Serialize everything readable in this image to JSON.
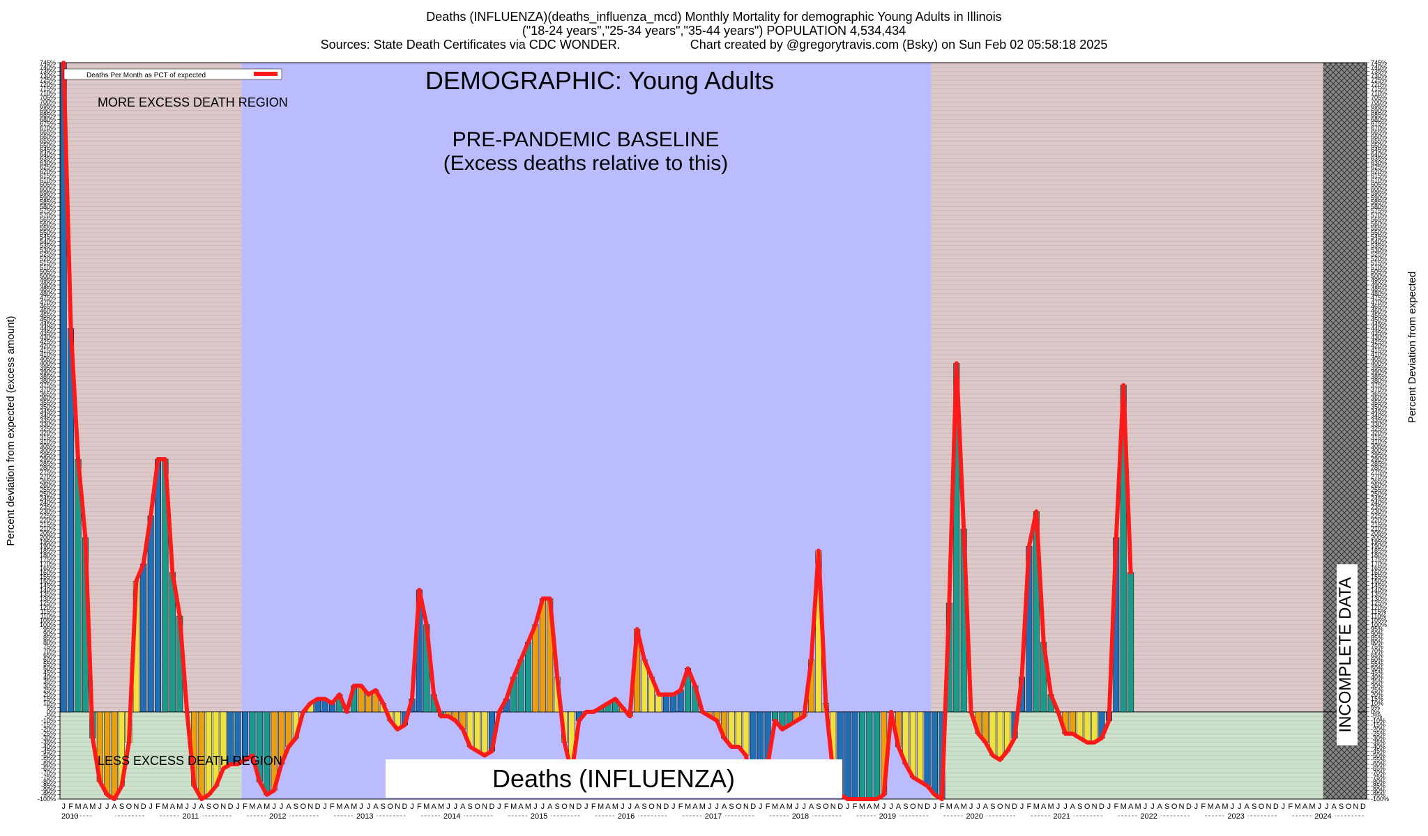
{
  "header": {
    "title_line1": "Deaths (INFLUENZA)(deaths_influenza_mcd) Monthly Mortality for demographic Young Adults in Illinois",
    "title_line2": "(\"18-24 years\",\"25-34 years\",\"35-44 years\") POPULATION 4,534,434",
    "sources": "Sources: State Death Certificates via CDC WONDER.",
    "credit": "Chart created by @gregorytravis.com (Bsky) on Sun Feb 02 05:58:18 2025"
  },
  "annotations": {
    "demographic": "DEMOGRAPHIC: Young Adults",
    "baseline_line1": "PRE-PANDEMIC BASELINE",
    "baseline_line2": "(Excess deaths relative to this)",
    "more_excess": "MORE EXCESS DEATH REGION",
    "less_excess": "LESS EXCESS DEATH REGION",
    "incomplete": "INCOMPLETE DATA",
    "bottom_label": "Deaths (INFLUENZA)"
  },
  "colors": {
    "background": "#ffffff",
    "baseline_region": "#bbbbff",
    "excess_region": "#dcc8c8",
    "less_region": "#cce0cc",
    "incomplete_region": "#888888",
    "line": "#ff1a1a",
    "bar_palette": [
      "#1f6fb4",
      "#1a9a8a",
      "#e8a010",
      "#f0e040"
    ]
  },
  "chart_data": {
    "type": "bar",
    "title": "Deaths (INFLUENZA)(deaths_influenza_mcd) Monthly Mortality for demographic Young Adults in Illinois",
    "ylabel_left": "Percent deviation from expected (excess amount)",
    "ylabel_right": "Percent Deviation from expected",
    "ylim": [
      -100,
      745
    ],
    "ytick_step": 5,
    "grid": true,
    "legend": {
      "label": "Deaths Per Month as PCT of expected",
      "placement": "top-left"
    },
    "x_start": "2010-01",
    "month_letters": [
      "J",
      "F",
      "M",
      "A",
      "M",
      "J",
      "J",
      "A",
      "S",
      "O",
      "N",
      "D"
    ],
    "years": [
      "2010",
      "2011",
      "2012",
      "2013",
      "2014",
      "2015",
      "2016",
      "2017",
      "2018",
      "2019",
      "2020",
      "2021",
      "2022",
      "2023",
      "2024"
    ],
    "regions": [
      {
        "name": "more excess / less excess",
        "from": "2010-01",
        "to": "2012-01"
      },
      {
        "name": "pre-pandemic baseline",
        "from": "2012-02",
        "to": "2020-01"
      },
      {
        "name": "more excess / less excess",
        "from": "2020-01",
        "to": "2024-06"
      },
      {
        "name": "incomplete data",
        "from": "2024-07",
        "to": "2024-12"
      }
    ],
    "series": [
      {
        "name": "Deaths Per Month as PCT of expected",
        "values": [
          745,
          440,
          290,
          200,
          -30,
          -80,
          -95,
          -100,
          -85,
          -35,
          150,
          170,
          225,
          290,
          290,
          160,
          110,
          0,
          -85,
          -100,
          -95,
          -85,
          -65,
          -60,
          -60,
          -55,
          -50,
          -80,
          -95,
          -90,
          -60,
          -40,
          -30,
          0,
          10,
          15,
          15,
          10,
          20,
          0,
          30,
          30,
          20,
          25,
          10,
          -10,
          -20,
          -15,
          15,
          140,
          100,
          20,
          -5,
          -5,
          -10,
          -20,
          -40,
          -45,
          -50,
          -45,
          0,
          15,
          40,
          60,
          80,
          100,
          130,
          130,
          40,
          -35,
          -70,
          -10,
          0,
          0,
          5,
          10,
          15,
          5,
          -5,
          95,
          60,
          40,
          20,
          20,
          20,
          25,
          50,
          30,
          0,
          -5,
          -10,
          -30,
          -40,
          -40,
          -50,
          -95,
          -90,
          -60,
          -10,
          -20,
          -15,
          -10,
          -5,
          60,
          185,
          10,
          -70,
          -95,
          -100,
          -100,
          -100,
          -100,
          -100,
          -95,
          0,
          -40,
          -60,
          -75,
          -80,
          -85,
          -95,
          -100,
          125,
          400,
          210,
          0,
          -25,
          -35,
          -50,
          -55,
          -45,
          -30,
          40,
          190,
          230,
          80,
          20,
          0,
          -25,
          -25,
          -30,
          -35,
          -35,
          -30,
          -10,
          200,
          375,
          160
        ]
      }
    ]
  }
}
